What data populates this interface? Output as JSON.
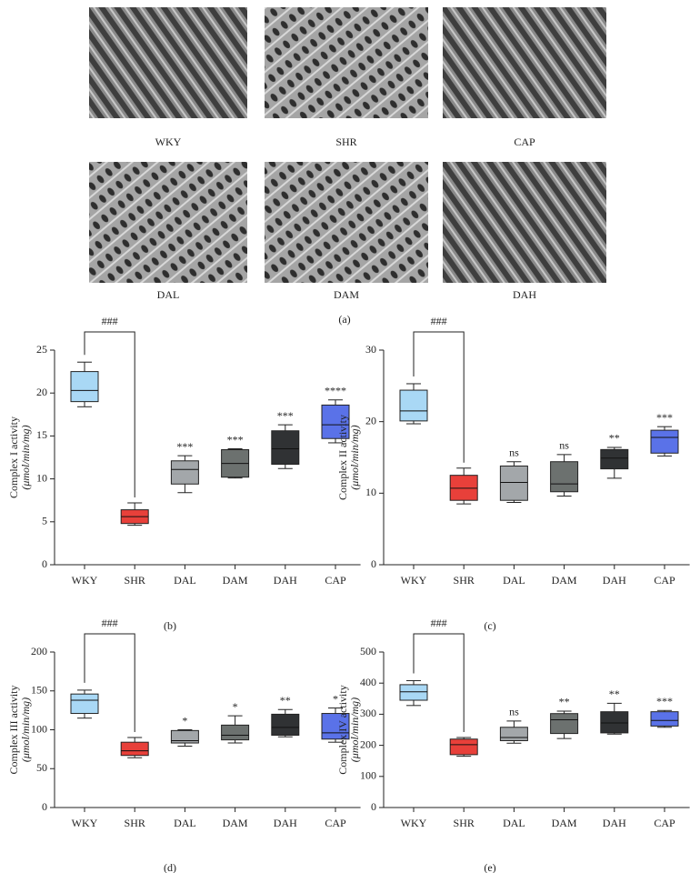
{
  "figure_a": {
    "panels": [
      "WKY",
      "SHR",
      "CAP",
      "DAL",
      "DAM",
      "DAH"
    ],
    "caption": "(a)"
  },
  "chart_data": [
    {
      "type": "box",
      "caption": "(b)",
      "ylabel": "Complex I activity",
      "ylabel_unit": "(μmol/min/mg)",
      "categories": [
        "WKY",
        "SHR",
        "DAL",
        "DAM",
        "DAH",
        "CAP"
      ],
      "colors": [
        "#a9d8f5",
        "#e8403a",
        "#a3a7aa",
        "#6c716f",
        "#303234",
        "#5a72e8"
      ],
      "boxes": [
        {
          "min": 18.4,
          "q1": 19.0,
          "median": 20.3,
          "q3": 22.5,
          "max": 23.6
        },
        {
          "min": 4.6,
          "q1": 4.8,
          "median": 5.6,
          "q3": 6.4,
          "max": 7.2
        },
        {
          "min": 8.4,
          "q1": 9.4,
          "median": 11.1,
          "q3": 12.1,
          "max": 12.7
        },
        {
          "min": 10.1,
          "q1": 10.2,
          "median": 11.8,
          "q3": 13.4,
          "max": 13.5
        },
        {
          "min": 11.2,
          "q1": 11.7,
          "median": 13.5,
          "q3": 15.6,
          "max": 16.3
        },
        {
          "min": 14.2,
          "q1": 14.7,
          "median": 16.3,
          "q3": 18.6,
          "max": 19.2
        }
      ],
      "significance": [
        null,
        null,
        "***",
        "***",
        "***",
        "****"
      ],
      "bracket_label": "###",
      "ylim": [
        0,
        25
      ],
      "yticks": [
        0,
        5,
        10,
        15,
        20,
        25
      ]
    },
    {
      "type": "box",
      "caption": "(c)",
      "ylabel": "Complex II activity",
      "ylabel_unit": "(μmol/min/mg)",
      "categories": [
        "WKY",
        "SHR",
        "DAL",
        "DAM",
        "DAH",
        "CAP"
      ],
      "colors": [
        "#a9d8f5",
        "#e8403a",
        "#a3a7aa",
        "#6c716f",
        "#303234",
        "#5a72e8"
      ],
      "boxes": [
        {
          "min": 19.7,
          "q1": 20.1,
          "median": 21.5,
          "q3": 24.4,
          "max": 25.3
        },
        {
          "min": 8.5,
          "q1": 9.0,
          "median": 10.7,
          "q3": 12.5,
          "max": 13.5
        },
        {
          "min": 8.7,
          "q1": 9.0,
          "median": 11.5,
          "q3": 13.8,
          "max": 14.4
        },
        {
          "min": 9.6,
          "q1": 10.2,
          "median": 11.3,
          "q3": 14.4,
          "max": 15.4
        },
        {
          "min": 12.1,
          "q1": 13.4,
          "median": 14.9,
          "q3": 16.1,
          "max": 16.4
        },
        {
          "min": 15.2,
          "q1": 15.6,
          "median": 17.8,
          "q3": 18.8,
          "max": 19.3
        }
      ],
      "significance": [
        null,
        null,
        "ns",
        "ns",
        "**",
        "***"
      ],
      "bracket_label": "###",
      "ylim": [
        0,
        30
      ],
      "yticks": [
        0,
        10,
        20,
        30
      ]
    },
    {
      "type": "box",
      "caption": "(d)",
      "ylabel": "Complex III activity",
      "ylabel_unit": "(μmol/min/mg)",
      "categories": [
        "WKY",
        "SHR",
        "DAL",
        "DAM",
        "DAH",
        "CAP"
      ],
      "colors": [
        "#a9d8f5",
        "#e8403a",
        "#a3a7aa",
        "#6c716f",
        "#303234",
        "#5a72e8"
      ],
      "boxes": [
        {
          "min": 115,
          "q1": 121,
          "median": 138,
          "q3": 146,
          "max": 151
        },
        {
          "min": 64,
          "q1": 67,
          "median": 73,
          "q3": 84,
          "max": 90
        },
        {
          "min": 79,
          "q1": 83,
          "median": 86,
          "q3": 99,
          "max": 100
        },
        {
          "min": 83,
          "q1": 87,
          "median": 93,
          "q3": 106,
          "max": 118
        },
        {
          "min": 91,
          "q1": 93,
          "median": 103,
          "q3": 120,
          "max": 126
        },
        {
          "min": 84,
          "q1": 88,
          "median": 96,
          "q3": 121,
          "max": 128
        }
      ],
      "significance": [
        null,
        null,
        "*",
        "*",
        "**",
        "*"
      ],
      "bracket_label": "###",
      "ylim": [
        0,
        200
      ],
      "yticks": [
        0,
        50,
        100,
        150,
        200
      ]
    },
    {
      "type": "box",
      "caption": "(e)",
      "ylabel": "Complex IV activity",
      "ylabel_unit": "(μmol/min/mg)",
      "categories": [
        "WKY",
        "SHR",
        "DAL",
        "DAM",
        "DAH",
        "CAP"
      ],
      "colors": [
        "#a9d8f5",
        "#e8403a",
        "#a3a7aa",
        "#6c716f",
        "#303234",
        "#5a72e8"
      ],
      "boxes": [
        {
          "min": 328,
          "q1": 345,
          "median": 372,
          "q3": 395,
          "max": 408
        },
        {
          "min": 165,
          "q1": 170,
          "median": 202,
          "q3": 220,
          "max": 225
        },
        {
          "min": 207,
          "q1": 215,
          "median": 225,
          "q3": 258,
          "max": 278
        },
        {
          "min": 222,
          "q1": 238,
          "median": 282,
          "q3": 302,
          "max": 310
        },
        {
          "min": 236,
          "q1": 240,
          "median": 272,
          "q3": 308,
          "max": 335
        },
        {
          "min": 258,
          "q1": 262,
          "median": 280,
          "q3": 308,
          "max": 312
        }
      ],
      "significance": [
        null,
        null,
        "ns",
        "**",
        "**",
        "***"
      ],
      "bracket_label": "###",
      "ylim": [
        0,
        500
      ],
      "yticks": [
        0,
        100,
        200,
        300,
        400,
        500
      ]
    }
  ]
}
